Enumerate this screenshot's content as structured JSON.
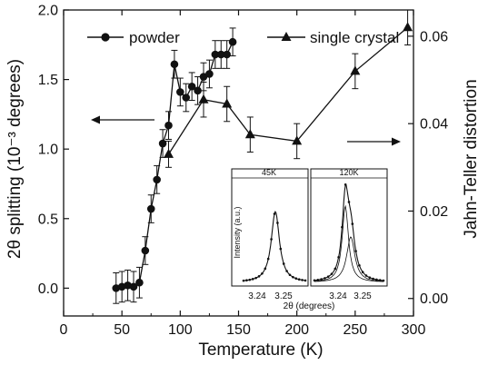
{
  "chart_data": {
    "type": "scatter",
    "xlabel": "Temperature (K)",
    "ylabel_left": "2θ splitting (10⁻³ degrees)",
    "ylabel_right": "Jahn-Teller distortion",
    "xlim": [
      0,
      300
    ],
    "ylim_left": [
      -0.2,
      2.0
    ],
    "ylim_right": [
      -0.004,
      0.066
    ],
    "x_ticks": [
      "0",
      "50",
      "100",
      "150",
      "200",
      "250",
      "300"
    ],
    "y_left_ticks": [
      "0.0",
      "0.5",
      "1.0",
      "1.5",
      "2.0"
    ],
    "y_right_ticks": [
      "0.00",
      "0.02",
      "0.04",
      "0.06"
    ],
    "legend": {
      "placement": "top",
      "powder_label": "powder",
      "crystal_label": "single crystal"
    },
    "series": [
      {
        "name": "powder",
        "axis": "left",
        "marker": "circle",
        "x": [
          45,
          50,
          55,
          60,
          65,
          70,
          75,
          80,
          85,
          90,
          95,
          100,
          105,
          110,
          115,
          120,
          125,
          130,
          135,
          140,
          145
        ],
        "y": [
          0.0,
          0.01,
          0.02,
          0.01,
          0.04,
          0.27,
          0.57,
          0.78,
          1.04,
          1.17,
          1.61,
          1.41,
          1.37,
          1.45,
          1.42,
          1.52,
          1.54,
          1.68,
          1.68,
          1.68,
          1.77
        ],
        "err": [
          0.11,
          0.11,
          0.11,
          0.11,
          0.11,
          0.1,
          0.1,
          0.1,
          0.1,
          0.1,
          0.1,
          0.1,
          0.1,
          0.1,
          0.1,
          0.1,
          0.1,
          0.1,
          0.1,
          0.1,
          0.1
        ]
      },
      {
        "name": "single crystal",
        "axis": "right",
        "marker": "triangle",
        "x": [
          90,
          120,
          140,
          160,
          200,
          250,
          295
        ],
        "y": [
          0.033,
          0.0455,
          0.0445,
          0.0375,
          0.036,
          0.052,
          0.062
        ],
        "err": [
          0.003,
          0.004,
          0.004,
          0.004,
          0.004,
          0.004,
          0.004
        ]
      }
    ],
    "annotations": {
      "left_arrow": "points to left axis",
      "right_arrow": "points to right axis"
    },
    "inset": {
      "ylabel": "Intensity (a.u.)",
      "xlabel": "2θ (degrees)",
      "panels": [
        {
          "title": "45K",
          "ticks": [
            "3.24",
            "3.25"
          ]
        },
        {
          "title": "120K",
          "ticks": [
            "3.24",
            "3.25"
          ]
        }
      ]
    }
  }
}
